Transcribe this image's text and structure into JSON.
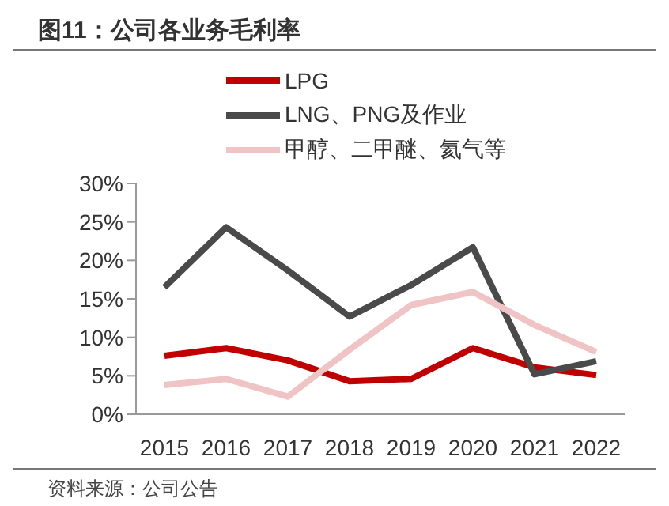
{
  "chart_data": {
    "type": "line",
    "title": "图11：公司各业务毛利率",
    "annotations": [
      "资料来源：公司公告"
    ],
    "categories": [
      "2015",
      "2016",
      "2017",
      "2018",
      "2019",
      "2020",
      "2021",
      "2022"
    ],
    "series": [
      {
        "name": "LPG",
        "color": "#c00000",
        "values": [
          7.6,
          8.6,
          7.0,
          4.3,
          4.6,
          8.6,
          6.1,
          5.1
        ]
      },
      {
        "name": "LNG、PNG及作业",
        "color": "#4a4a4a",
        "values": [
          16.5,
          24.3,
          18.7,
          12.7,
          16.8,
          21.7,
          5.2,
          6.9
        ]
      },
      {
        "name": "甲醇、二甲醚、氦气等",
        "color": "#f0c4c4",
        "values": [
          3.8,
          4.6,
          2.3,
          8.4,
          14.2,
          15.9,
          11.6,
          8.1
        ]
      }
    ],
    "ylim": [
      0,
      30
    ],
    "yticks": [
      {
        "value": 0,
        "label": "0%"
      },
      {
        "value": 5,
        "label": "5%"
      },
      {
        "value": 10,
        "label": "10%"
      },
      {
        "value": 15,
        "label": "15%"
      },
      {
        "value": 20,
        "label": "20%"
      },
      {
        "value": 25,
        "label": "25%"
      },
      {
        "value": 30,
        "label": "30%"
      }
    ],
    "grid": false,
    "legend": "top",
    "marker": "none",
    "line_style": "solid"
  }
}
